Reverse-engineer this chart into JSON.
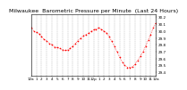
{
  "title": "Milwaukee  Barometric Pressure per Minute  (Last 24 Hours)",
  "line_color": "#ff0000",
  "bg_color": "#ffffff",
  "grid_color": "#aaaaaa",
  "ylim": [
    29.35,
    30.25
  ],
  "yticks": [
    29.4,
    29.5,
    29.6,
    29.7,
    29.8,
    29.9,
    30.0,
    30.1,
    30.2
  ],
  "x_values": [
    0,
    30,
    60,
    90,
    120,
    150,
    180,
    210,
    240,
    270,
    300,
    330,
    360,
    390,
    420,
    450,
    480,
    510,
    540,
    570,
    600,
    630,
    660,
    690,
    720,
    750,
    780,
    810,
    840,
    870,
    900,
    930,
    960,
    990,
    1020,
    1050,
    1080,
    1110,
    1140,
    1170,
    1200,
    1230,
    1260,
    1290,
    1320,
    1350,
    1380,
    1410,
    1440
  ],
  "y_values": [
    30.05,
    30.0,
    29.98,
    29.96,
    29.92,
    29.88,
    29.85,
    29.82,
    29.8,
    29.77,
    29.76,
    29.75,
    29.73,
    29.72,
    29.72,
    29.75,
    29.78,
    29.82,
    29.86,
    29.9,
    29.93,
    29.95,
    29.97,
    30.0,
    30.02,
    30.03,
    30.05,
    30.03,
    30.0,
    29.97,
    29.92,
    29.85,
    29.78,
    29.7,
    29.62,
    29.55,
    29.5,
    29.47,
    29.47,
    29.48,
    29.52,
    29.57,
    29.63,
    29.7,
    29.78,
    29.87,
    29.95,
    30.05,
    30.12
  ],
  "vgrid_positions": [
    0,
    60,
    120,
    180,
    240,
    300,
    360,
    420,
    480,
    540,
    600,
    660,
    720,
    780,
    840,
    900,
    960,
    1020,
    1080,
    1140,
    1200,
    1260,
    1320,
    1380,
    1440
  ],
  "xtick_labels": [
    "12a",
    "1",
    "2",
    "3",
    "4",
    "5",
    "6",
    "7",
    "8",
    "9",
    "10",
    "11",
    "12p",
    "1",
    "2",
    "3",
    "4",
    "5",
    "6",
    "7",
    "8",
    "9",
    "10",
    "11",
    "12a"
  ],
  "title_fontsize": 4.5,
  "tick_fontsize": 3.0,
  "markersize": 1.2,
  "linewidth": 0.5
}
